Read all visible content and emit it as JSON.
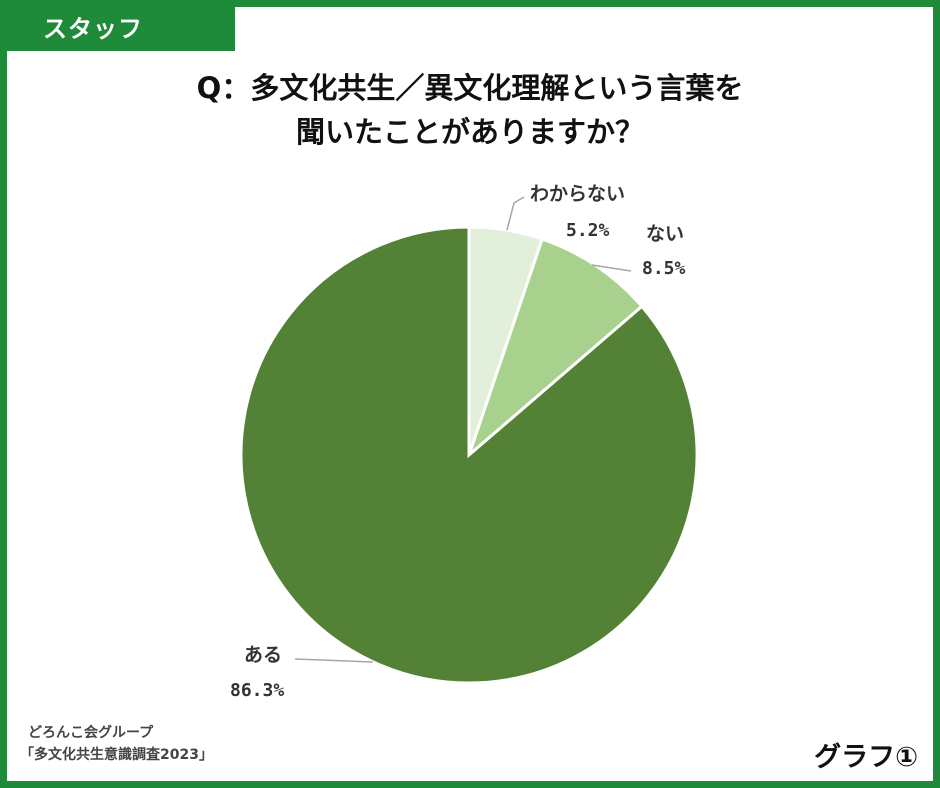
{
  "tab_label": "スタッフ",
  "title_line1": "Q：多文化共生／異文化理解という言葉を",
  "title_line2": "聞いたことがありますか？",
  "source_line1": "どろんこ会グループ",
  "source_line2": "「多文化共生意識調査2023」",
  "graph_label": "グラフ①",
  "colors": {
    "frame": "#1f8a3a",
    "aru": "#538135",
    "nai": "#a9d18e",
    "wakaranai": "#e2efda"
  },
  "chart_data": {
    "type": "pie",
    "title": "Q：多文化共生／異文化理解という言葉を聞いたことがありますか？",
    "slices": [
      {
        "label": "わからない",
        "value": 5.2,
        "value_label": "5.2%",
        "color": "#e2efda"
      },
      {
        "label": "ない",
        "value": 8.5,
        "value_label": "8.5%",
        "color": "#a9d18e"
      },
      {
        "label": "ある",
        "value": 86.3,
        "value_label": "86.3%",
        "color": "#538135"
      }
    ],
    "start_angle": "12 o'clock",
    "direction": "clockwise",
    "legend": "none"
  }
}
